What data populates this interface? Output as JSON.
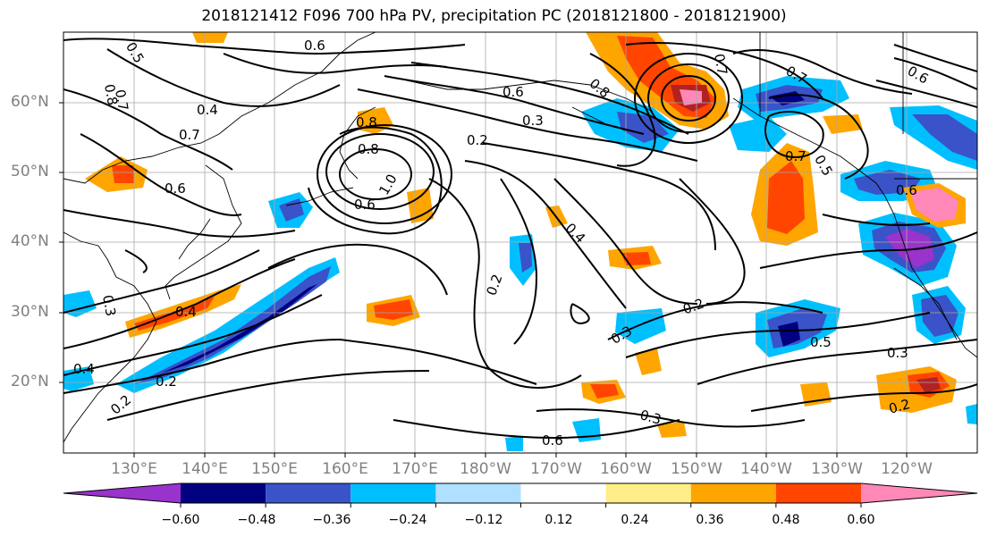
{
  "title": "2018121412 F096 700 hPa PV, precipitation PC (2018121800 - 2018121900)",
  "lat_labels": [
    {
      "text": "60°N",
      "lat": 60
    },
    {
      "text": "50°N",
      "lat": 50
    },
    {
      "text": "40°N",
      "lat": 40
    },
    {
      "text": "30°N",
      "lat": 30
    },
    {
      "text": "20°N",
      "lat": 20
    }
  ],
  "lon_labels": [
    "130°E",
    "140°E",
    "150°E",
    "160°E",
    "170°E",
    "180°W",
    "170°W",
    "160°W",
    "150°W",
    "140°W",
    "130°W",
    "120°W"
  ],
  "colorbar": {
    "tick_labels": [
      "−0.60",
      "−0.48",
      "−0.36",
      "−0.24",
      "−0.12",
      "0.12",
      "0.24",
      "0.36",
      "0.48",
      "0.60"
    ],
    "colors": [
      "#9933cc",
      "#000080",
      "#3a53c8",
      "#00bfff",
      "#b0e0ff",
      "#ffffff",
      "#ffee88",
      "#ffa500",
      "#ff4500",
      "#b22222",
      "#ff88b8"
    ],
    "extend": "both"
  },
  "contour_labels": [
    "0.6",
    "0.5",
    "0.8",
    "0.7",
    "0.4",
    "0.7",
    "0.6",
    "0.6",
    "0.3",
    "0.2",
    "0.8",
    "0.8",
    "1.0",
    "0.6",
    "0.4",
    "0.2",
    "0.4",
    "0.3",
    "0.4",
    "0.2",
    "0.2",
    "0.3",
    "0.2",
    "0.3",
    "0.5",
    "0.3",
    "0.2",
    "0.7",
    "0.6",
    "0.7",
    "0.5",
    "0.6",
    "0.7",
    "0.8",
    "0.6"
  ]
}
